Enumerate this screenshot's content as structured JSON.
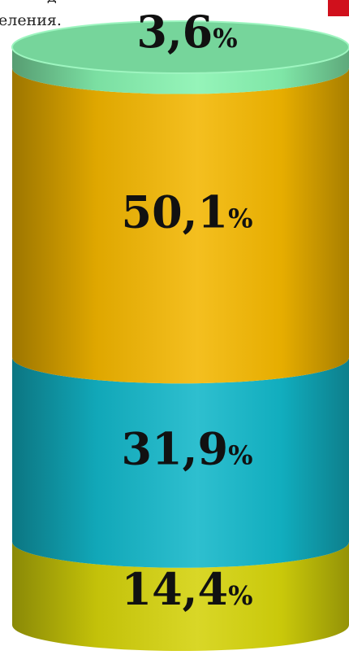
{
  "caption_fragment": "еления.",
  "caption_fragment_top": "д",
  "chart_data": {
    "type": "bar",
    "style": "stacked-cylinder",
    "segments": [
      {
        "value": 14.4,
        "label": "14,4",
        "color": "#d4d20a"
      },
      {
        "value": 31.9,
        "label": "31,9",
        "color": "#12b6c8"
      },
      {
        "value": 50.1,
        "label": "50,1",
        "color": "#f2b600"
      },
      {
        "value": 3.6,
        "label": "3,6",
        "color": "#86f2b0"
      }
    ],
    "unit_suffix": "%",
    "total": 100
  }
}
